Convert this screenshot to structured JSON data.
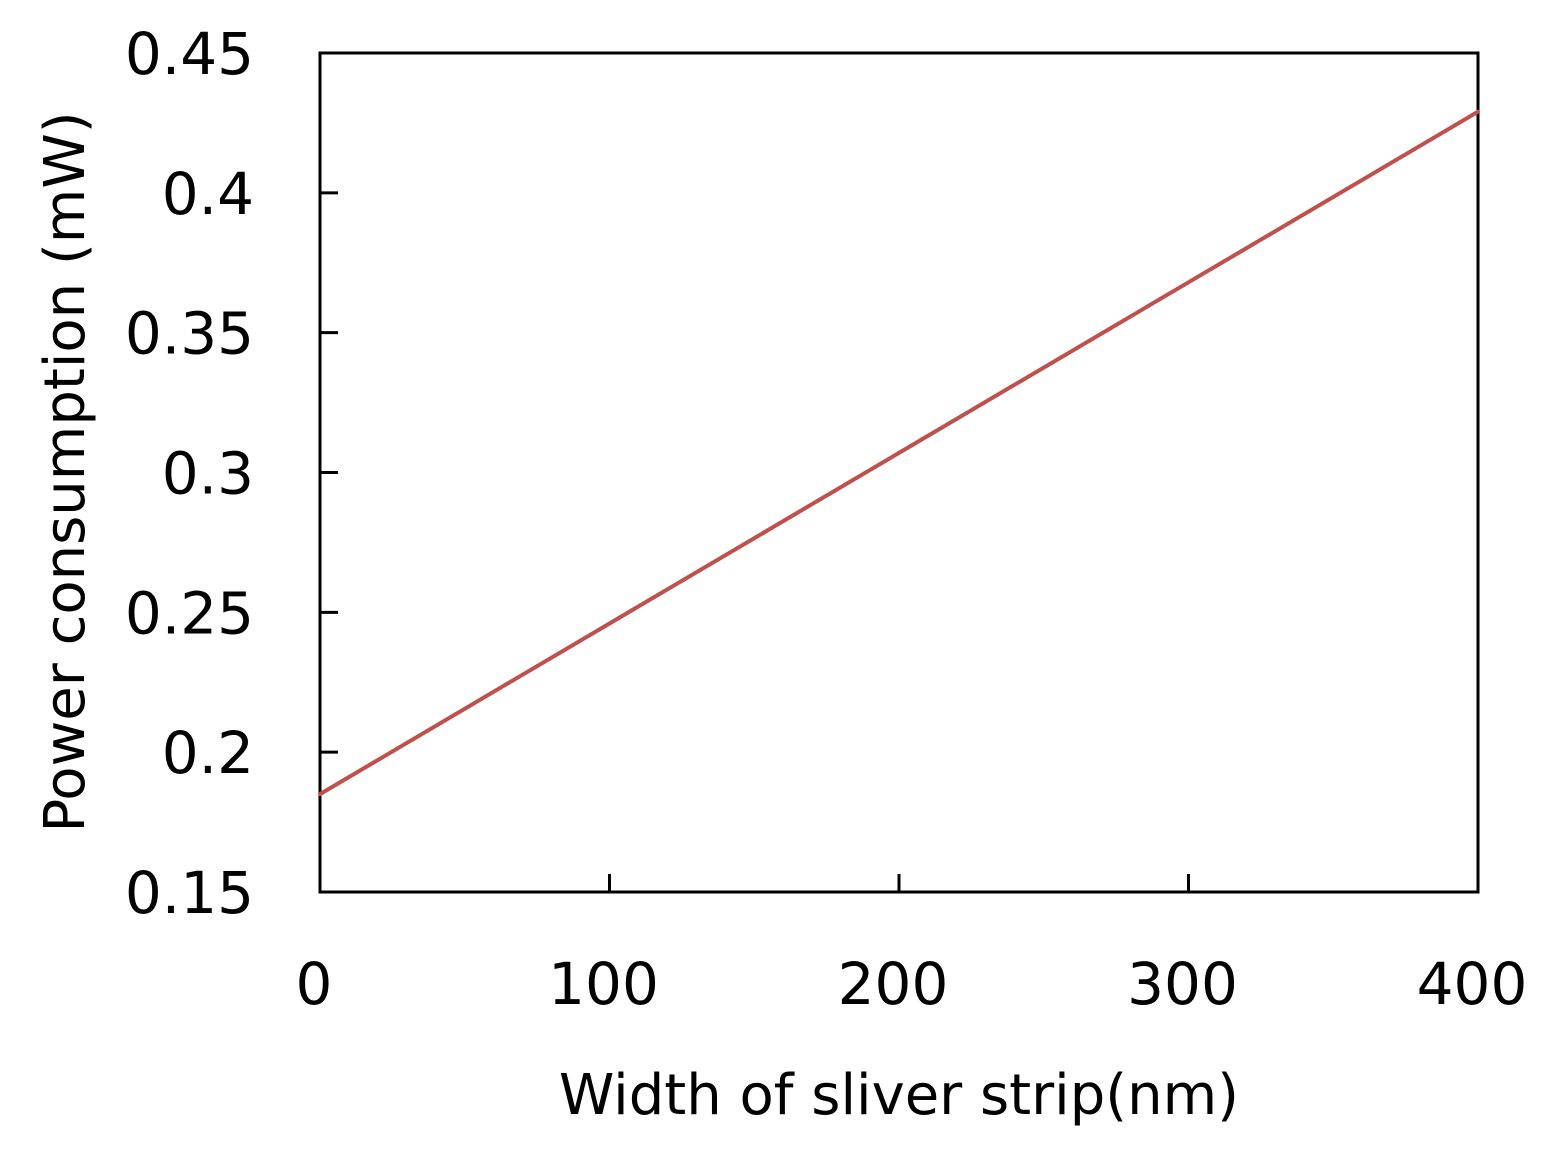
{
  "chart_data": {
    "type": "line",
    "title": "",
    "xlabel": "Width of sliver strip(nm)",
    "ylabel": "Power consumption (mW)",
    "xlim": [
      0,
      400
    ],
    "ylim": [
      0.15,
      0.45
    ],
    "xticks": [
      "0",
      "100",
      "200",
      "300",
      "400"
    ],
    "yticks": [
      "0.15",
      "0.2",
      "0.25",
      "0.3",
      "0.35",
      "0.4",
      "0.45"
    ],
    "grid": false,
    "legend": "none",
    "series": [
      {
        "color": "#c0504d",
        "x": [
          0,
          100,
          200,
          300,
          400
        ],
        "y": [
          0.185,
          0.246,
          0.307,
          0.368,
          0.429
        ]
      }
    ]
  }
}
